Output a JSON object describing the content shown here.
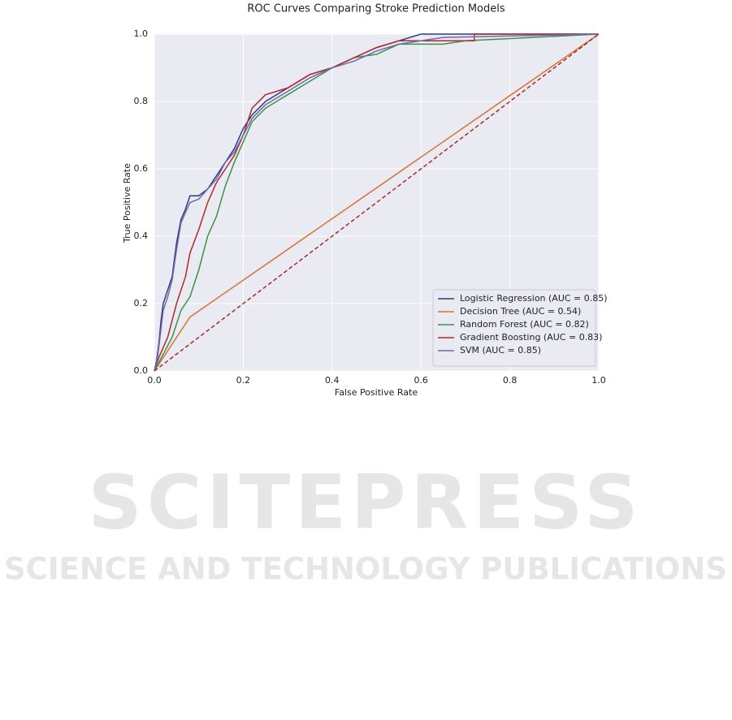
{
  "chart_data": {
    "type": "line",
    "title": "ROC Curves Comparing Stroke Prediction Models",
    "x_label": "False Positive Rate",
    "y_label": "True Positive Rate",
    "xlim": [
      0,
      1
    ],
    "ylim": [
      0,
      1
    ],
    "xticks": [
      {
        "value": 0,
        "label": "0.0"
      },
      0.2,
      0.4,
      0.6,
      0.8,
      {
        "value": 1,
        "label": "1.0"
      }
    ],
    "yticks": [
      {
        "value": 0,
        "label": "0.0"
      },
      0.2,
      0.4,
      0.6,
      0.8,
      {
        "value": 1,
        "label": "1.0"
      }
    ],
    "grid": true,
    "legend": "lower right",
    "series": [
      {
        "name": "Logistic Regression (AUC = 0.85)",
        "color": "#2a3f7e",
        "x": [
          0,
          0.005,
          0.01,
          0.015,
          0.02,
          0.03,
          0.04,
          0.05,
          0.06,
          0.07,
          0.08,
          0.1,
          0.12,
          0.14,
          0.16,
          0.18,
          0.2,
          0.22,
          0.25,
          0.3,
          0.35,
          0.4,
          0.45,
          0.5,
          0.55,
          0.6,
          1
        ],
        "values": [
          0,
          0.03,
          0.08,
          0.15,
          0.2,
          0.24,
          0.28,
          0.38,
          0.45,
          0.48,
          0.52,
          0.52,
          0.54,
          0.58,
          0.62,
          0.66,
          0.72,
          0.76,
          0.8,
          0.84,
          0.88,
          0.9,
          0.93,
          0.96,
          0.98,
          1,
          1
        ]
      },
      {
        "name": "Decision Tree (AUC = 0.54)",
        "color": "#d8702f",
        "x": [
          0,
          0.08,
          1
        ],
        "values": [
          0,
          0.16,
          1
        ]
      },
      {
        "name": "Random Forest (AUC = 0.82)",
        "color": "#3b9343",
        "x": [
          0,
          0.02,
          0.04,
          0.06,
          0.08,
          0.1,
          0.12,
          0.14,
          0.16,
          0.18,
          0.2,
          0.22,
          0.25,
          0.3,
          0.35,
          0.4,
          0.45,
          0.5,
          0.55,
          0.65,
          0.7,
          1
        ],
        "values": [
          0,
          0.05,
          0.1,
          0.18,
          0.22,
          0.3,
          0.4,
          0.46,
          0.55,
          0.62,
          0.68,
          0.74,
          0.78,
          0.82,
          0.86,
          0.9,
          0.93,
          0.94,
          0.97,
          0.97,
          0.98,
          1
        ]
      },
      {
        "name": "Gradient Boosting (AUC = 0.83)",
        "color": "#b5272e",
        "x": [
          0,
          0.01,
          0.03,
          0.05,
          0.07,
          0.08,
          0.1,
          0.12,
          0.14,
          0.16,
          0.18,
          0.2,
          0.22,
          0.25,
          0.3,
          0.35,
          0.4,
          0.45,
          0.5,
          0.55,
          0.72,
          0.72,
          1
        ],
        "values": [
          0,
          0.04,
          0.1,
          0.2,
          0.28,
          0.35,
          0.42,
          0.5,
          0.56,
          0.6,
          0.64,
          0.7,
          0.78,
          0.82,
          0.84,
          0.88,
          0.9,
          0.93,
          0.96,
          0.98,
          0.98,
          1,
          1
        ]
      },
      {
        "name": "SVM (AUC = 0.85)",
        "color": "#7167ad",
        "x": [
          0,
          0.005,
          0.01,
          0.02,
          0.03,
          0.04,
          0.05,
          0.06,
          0.07,
          0.08,
          0.1,
          0.12,
          0.14,
          0.16,
          0.18,
          0.2,
          0.22,
          0.25,
          0.3,
          0.35,
          0.4,
          0.45,
          0.5,
          0.55,
          0.65,
          1
        ],
        "values": [
          0,
          0.02,
          0.07,
          0.18,
          0.22,
          0.27,
          0.36,
          0.44,
          0.47,
          0.5,
          0.51,
          0.54,
          0.57,
          0.62,
          0.65,
          0.7,
          0.75,
          0.79,
          0.83,
          0.87,
          0.9,
          0.92,
          0.95,
          0.97,
          0.99,
          1
        ]
      }
    ],
    "reference_line": {
      "color": "#a52a2a",
      "x": [
        0,
        1
      ],
      "values": [
        0,
        1
      ]
    }
  },
  "watermark": {
    "title": "SCITEPRESS",
    "subtitle": "SCIENCE AND TECHNOLOGY PUBLICATIONS"
  }
}
